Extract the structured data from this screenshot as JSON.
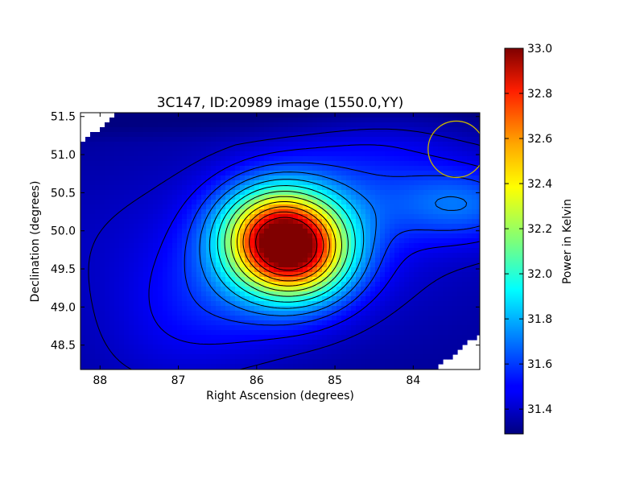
{
  "chart_data": {
    "type": "heatmap",
    "title": "3C147, ID:20989 image (1550.0,YY)",
    "xlabel": "Right Ascension (degrees)",
    "ylabel": "Declination (degrees)",
    "xlim": [
      88.25,
      83.15
    ],
    "ylim": [
      48.18,
      51.55
    ],
    "x_ticks": [
      88,
      87,
      86,
      85,
      84
    ],
    "x_tick_labels": [
      "88",
      "87",
      "86",
      "85",
      "84"
    ],
    "y_ticks": [
      48.5,
      49.0,
      49.5,
      50.0,
      50.5,
      51.0,
      51.5
    ],
    "y_tick_labels": [
      "48.5",
      "49.0",
      "49.5",
      "50.0",
      "50.5",
      "51.0",
      "51.5"
    ],
    "colorbar": {
      "label": "Power in Kelvin",
      "colormap": "jet",
      "range": [
        31.29,
        33.0
      ],
      "ticks": [
        31.4,
        31.6,
        31.8,
        32.0,
        32.2,
        32.4,
        32.6,
        32.8,
        33.0
      ],
      "tick_labels": [
        "31.4",
        "31.6",
        "31.8",
        "32.0",
        "32.2",
        "32.4",
        "32.6",
        "32.8",
        "33.0"
      ]
    },
    "peak": {
      "ra": 85.62,
      "dec": 49.83,
      "value": 32.98
    },
    "secondary_feature": {
      "ra": 83.35,
      "dec": 50.35,
      "value": 31.88
    },
    "contours": {
      "count": 12,
      "color": "#000000"
    },
    "beam_circle": {
      "ra": 83.45,
      "dec": 51.07,
      "radius_deg": 0.36,
      "color": "#c8b400"
    }
  }
}
